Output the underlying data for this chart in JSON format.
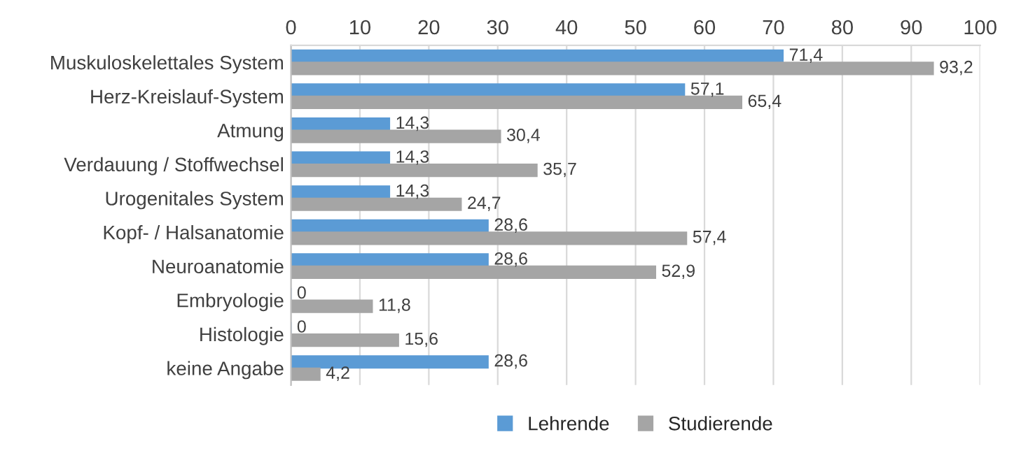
{
  "chart_data": {
    "type": "bar",
    "orientation": "horizontal",
    "categories": [
      "Muskuloskelettales System",
      "Herz-Kreislauf-System",
      "Atmung",
      "Verdauung / Stoffwechsel",
      "Urogenitales System",
      "Kopf- / Halsanatomie",
      "Neuroanatomie",
      "Embryologie",
      "Histologie",
      "keine Angabe"
    ],
    "series": [
      {
        "name": "Lehrende",
        "color": "#5b9bd5",
        "values": [
          71.4,
          57.1,
          14.3,
          14.3,
          14.3,
          28.6,
          28.6,
          0,
          0,
          28.6
        ],
        "value_labels": [
          "71,4",
          "57,1",
          "14,3",
          "14,3",
          "14,3",
          "28,6",
          "28,6",
          "0",
          "0",
          "28,6"
        ]
      },
      {
        "name": "Studierende",
        "color": "#a5a5a5",
        "values": [
          93.2,
          65.4,
          30.4,
          35.7,
          24.7,
          57.4,
          52.9,
          11.8,
          15.6,
          4.2
        ],
        "value_labels": [
          "93,2",
          "65,4",
          "30,4",
          "35,7",
          "24,7",
          "57,4",
          "52,9",
          "11,8",
          "15,6",
          "4,2"
        ]
      }
    ],
    "xlim": [
      0,
      100
    ],
    "xticks": [
      0,
      10,
      20,
      30,
      40,
      50,
      60,
      70,
      80,
      90,
      100
    ],
    "grid": "x",
    "legend": "bottom"
  }
}
